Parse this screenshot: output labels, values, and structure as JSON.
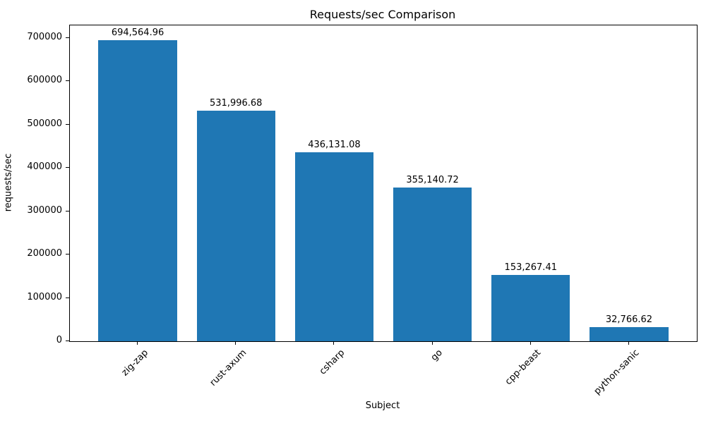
{
  "figure": {
    "background_color": "#ffffff",
    "text_color": "#000000"
  },
  "chart_data": {
    "type": "bar",
    "title": "Requests/sec Comparison",
    "xlabel": "Subject",
    "ylabel": "requests/sec",
    "categories": [
      "zig-zap",
      "rust-axum",
      "csharp",
      "go",
      "cpp-beast",
      "python-sanic"
    ],
    "values": [
      694564.96,
      531996.68,
      436131.08,
      355140.72,
      153267.41,
      32766.62
    ],
    "value_labels": [
      "694,564.96",
      "531,996.68",
      "436,131.08",
      "355,140.72",
      "153,267.41",
      "32,766.62"
    ],
    "yticks": [
      0,
      100000,
      200000,
      300000,
      400000,
      500000,
      600000,
      700000
    ],
    "ytick_labels": [
      "0",
      "100000",
      "200000",
      "300000",
      "400000",
      "500000",
      "600000",
      "700000"
    ],
    "ylim": [
      0,
      729293
    ],
    "bar_color": "#1f77b4",
    "grid": false,
    "legend": null,
    "xtick_rotation": 45
  }
}
